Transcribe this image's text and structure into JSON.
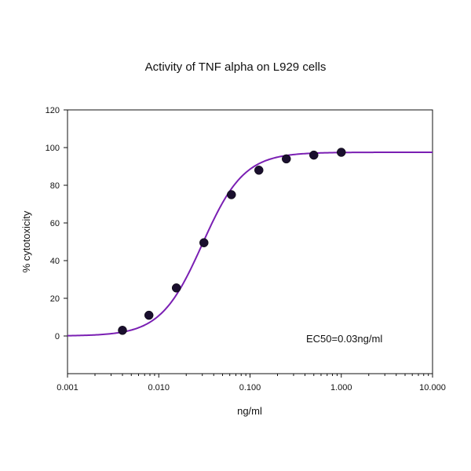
{
  "chart_data": {
    "type": "scatter",
    "title": "Activity of TNF alpha on L929 cells",
    "xlabel": "ng/ml",
    "ylabel": "% cytotoxicity",
    "x_scale": "log",
    "xlim": [
      0.001,
      10.0
    ],
    "ylim": [
      -20,
      120
    ],
    "x_ticks": [
      "0.001",
      "0.010",
      "0.100",
      "1.000",
      "10.000"
    ],
    "y_ticks": [
      "120",
      "100",
      "80",
      "60",
      "40",
      "20",
      "0"
    ],
    "annotation": "EC50=0.03ng/ml",
    "grid": false,
    "series": [
      {
        "x": [
          0.004,
          0.0078,
          0.0156,
          0.03125,
          0.0625,
          0.125,
          0.25,
          0.5,
          1.0
        ],
        "y": [
          3,
          11,
          25.5,
          49.5,
          75,
          88,
          94,
          96,
          97.5
        ]
      }
    ],
    "fit": {
      "type": "4PL",
      "bottom": 0,
      "top": 97.5,
      "ec50": 0.03,
      "hill": 1.9
    },
    "colors": {
      "curve": "#7a1fb3",
      "points": "#1a0f2e",
      "axis": "#111111"
    }
  }
}
